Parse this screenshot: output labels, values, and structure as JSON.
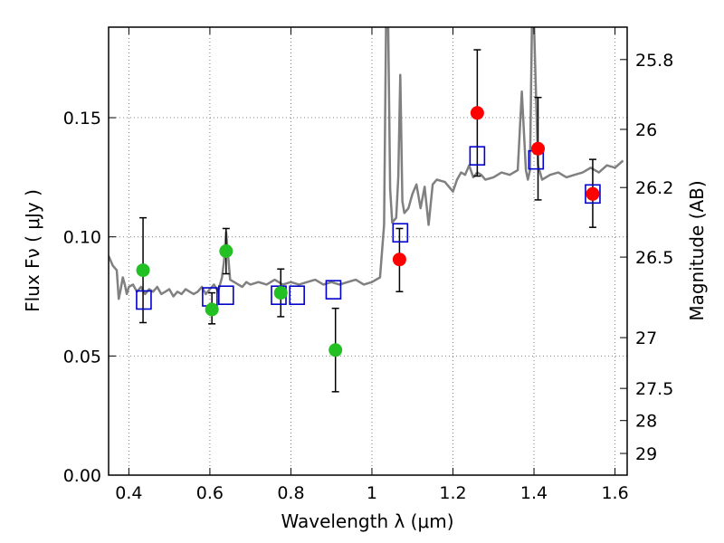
{
  "chart_data": {
    "type": "scatter",
    "xlabel": "Wavelength  λ (μm)",
    "ylabel": "Flux  Fν  ( μJy )",
    "ylabel_right": "Magnitude (AB)",
    "xlim": [
      0.35,
      1.63
    ],
    "ylim": [
      0.0,
      0.188
    ],
    "grid": true,
    "x_ticks": [
      0.4,
      0.6,
      0.8,
      1.0,
      1.2,
      1.4,
      1.6
    ],
    "x_tick_labels": [
      "0.4",
      "0.6",
      "0.8",
      "1",
      "1.2",
      "1.4",
      "1.6"
    ],
    "y_ticks": [
      0.0,
      0.05,
      0.1,
      0.15
    ],
    "y_tick_labels": [
      "0.00",
      "0.05",
      "0.10",
      "0.15"
    ],
    "right_ticks": [
      {
        "label": "25.8",
        "flux": 0.1744
      },
      {
        "label": "26",
        "flux": 0.1451
      },
      {
        "label": "26.2",
        "flux": 0.1207
      },
      {
        "label": "26.5",
        "flux": 0.0915
      },
      {
        "label": "27",
        "flux": 0.0577
      },
      {
        "label": "27.5",
        "flux": 0.0364
      },
      {
        "label": "28",
        "flux": 0.0229
      },
      {
        "label": "29",
        "flux": 0.0091
      }
    ],
    "colors": {
      "template": "#808080",
      "green": "#22c022",
      "red": "#ff0000",
      "model_box": "#0000cc",
      "errorbar": "#000000",
      "grid": "#808080"
    },
    "template_spectrum": {
      "x": [
        0.35,
        0.36,
        0.37,
        0.375,
        0.38,
        0.385,
        0.39,
        0.395,
        0.4,
        0.41,
        0.42,
        0.43,
        0.44,
        0.45,
        0.46,
        0.47,
        0.48,
        0.49,
        0.5,
        0.51,
        0.52,
        0.53,
        0.54,
        0.55,
        0.56,
        0.57,
        0.58,
        0.59,
        0.6,
        0.61,
        0.62,
        0.63,
        0.635,
        0.64,
        0.645,
        0.65,
        0.66,
        0.67,
        0.68,
        0.69,
        0.7,
        0.72,
        0.74,
        0.76,
        0.78,
        0.8,
        0.82,
        0.84,
        0.86,
        0.88,
        0.9,
        0.92,
        0.94,
        0.96,
        0.98,
        1.0,
        1.02,
        1.03,
        1.035,
        1.04,
        1.045,
        1.05,
        1.06,
        1.065,
        1.07,
        1.075,
        1.08,
        1.09,
        1.1,
        1.11,
        1.12,
        1.13,
        1.14,
        1.15,
        1.16,
        1.18,
        1.2,
        1.21,
        1.22,
        1.23,
        1.24,
        1.25,
        1.26,
        1.27,
        1.28,
        1.3,
        1.32,
        1.34,
        1.36,
        1.37,
        1.38,
        1.385,
        1.39,
        1.395,
        1.4,
        1.41,
        1.42,
        1.44,
        1.46,
        1.48,
        1.5,
        1.52,
        1.54,
        1.56,
        1.58,
        1.6,
        1.62
      ],
      "y": [
        0.092,
        0.088,
        0.086,
        0.074,
        0.078,
        0.083,
        0.08,
        0.076,
        0.079,
        0.08,
        0.077,
        0.079,
        0.076,
        0.078,
        0.077,
        0.079,
        0.076,
        0.077,
        0.078,
        0.075,
        0.077,
        0.076,
        0.078,
        0.077,
        0.076,
        0.077,
        0.079,
        0.076,
        0.078,
        0.08,
        0.077,
        0.083,
        0.09,
        0.102,
        0.092,
        0.082,
        0.081,
        0.08,
        0.079,
        0.081,
        0.08,
        0.081,
        0.08,
        0.082,
        0.08,
        0.081,
        0.08,
        0.081,
        0.082,
        0.08,
        0.081,
        0.08,
        0.081,
        0.082,
        0.08,
        0.081,
        0.083,
        0.105,
        0.19,
        0.19,
        0.12,
        0.106,
        0.108,
        0.125,
        0.168,
        0.115,
        0.11,
        0.112,
        0.118,
        0.122,
        0.112,
        0.121,
        0.105,
        0.122,
        0.124,
        0.123,
        0.119,
        0.124,
        0.127,
        0.126,
        0.13,
        0.125,
        0.127,
        0.126,
        0.124,
        0.125,
        0.127,
        0.126,
        0.128,
        0.161,
        0.128,
        0.124,
        0.128,
        0.19,
        0.19,
        0.13,
        0.124,
        0.126,
        0.127,
        0.125,
        0.126,
        0.127,
        0.129,
        0.127,
        0.13,
        0.129,
        0.132
      ]
    },
    "green_points": [
      {
        "x": 0.435,
        "y": 0.086,
        "yerr_low": 0.064,
        "yerr_high": 0.108
      },
      {
        "x": 0.605,
        "y": 0.0695,
        "yerr_low": 0.0635,
        "yerr_high": 0.0765
      },
      {
        "x": 0.64,
        "y": 0.094,
        "yerr_low": 0.0845,
        "yerr_high": 0.1035
      },
      {
        "x": 0.775,
        "y": 0.0765,
        "yerr_low": 0.0665,
        "yerr_high": 0.0865
      },
      {
        "x": 0.91,
        "y": 0.0525,
        "yerr_low": 0.035,
        "yerr_high": 0.07
      }
    ],
    "red_points": [
      {
        "x": 1.068,
        "y": 0.0905,
        "yerr_low": 0.077,
        "yerr_high": 0.1035
      },
      {
        "x": 1.26,
        "y": 0.152,
        "yerr_low": 0.1255,
        "yerr_high": 0.1785
      },
      {
        "x": 1.41,
        "y": 0.137,
        "yerr_low": 0.1155,
        "yerr_high": 0.1585
      },
      {
        "x": 1.545,
        "y": 0.118,
        "yerr_low": 0.104,
        "yerr_high": 0.1325
      }
    ],
    "model_boxes": [
      {
        "x": 0.437,
        "y": 0.0735
      },
      {
        "x": 0.6,
        "y": 0.0748
      },
      {
        "x": 0.64,
        "y": 0.0755
      },
      {
        "x": 0.77,
        "y": 0.0755
      },
      {
        "x": 0.815,
        "y": 0.0755
      },
      {
        "x": 0.905,
        "y": 0.0778
      },
      {
        "x": 1.07,
        "y": 0.1017
      },
      {
        "x": 1.26,
        "y": 0.134
      },
      {
        "x": 1.405,
        "y": 0.1323
      },
      {
        "x": 1.545,
        "y": 0.118
      }
    ]
  }
}
